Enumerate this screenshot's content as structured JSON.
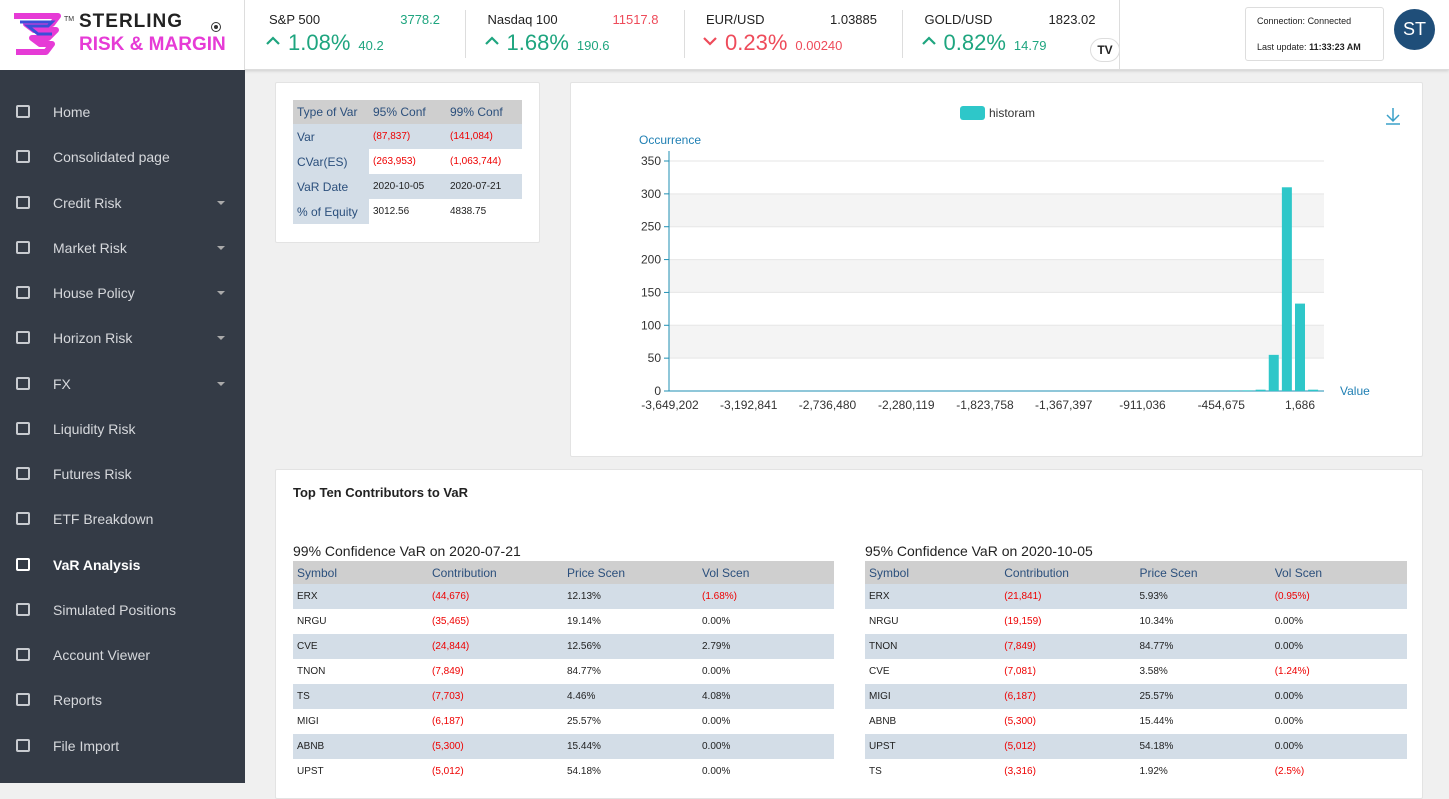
{
  "header": {
    "logo": {
      "line1": "STERLING",
      "line2": "RISK & MARGIN",
      "mark": "TM"
    },
    "tickers": [
      {
        "name": "S&P 500",
        "price": "3778.2",
        "change_pct": "1.08%",
        "change": "40.2"
      },
      {
        "name": "Nasdaq 100",
        "price": "11517.8",
        "change_pct": "1.68%",
        "change": "190.6"
      },
      {
        "name": "EUR/USD",
        "price": "1.03885",
        "change_pct": "0.23%",
        "change": "0.00240"
      },
      {
        "name": "GOLD/USD",
        "price": "1823.02",
        "change_pct": "0.82%",
        "change": "14.79"
      }
    ],
    "connection_label": "Connection:",
    "connection_value": "Connected",
    "update_label": "Last update:",
    "update_value": "11:33:23 AM",
    "avatar": "ST"
  },
  "sidebar": {
    "items": [
      "Home",
      "Consolidated page",
      "Credit Risk",
      "Market Risk",
      "House Policy",
      "Horizon Risk",
      "FX",
      "Liquidity Risk",
      "Futures Risk",
      "ETF Breakdown",
      "VaR Analysis",
      "Simulated Positions",
      "Account Viewer",
      "Reports",
      "File Import"
    ],
    "active": "VaR Analysis"
  },
  "summary_table": {
    "header": [
      "Type of Var",
      "95% Conf",
      "99% Conf"
    ],
    "rows": [
      [
        "Var",
        "(87,837)",
        "(141,084)"
      ],
      [
        "CVar(ES)",
        "(263,953)",
        "(1,063,744)"
      ],
      [
        "VaR Date",
        "2020-10-05",
        "2020-07-21"
      ],
      [
        "% of Equity",
        "3012.56",
        "4838.75"
      ]
    ]
  },
  "chart_data": {
    "type": "bar",
    "legend": "historam",
    "y_label": "Occurrence",
    "x_label": "Value",
    "color": "#2ec7c9",
    "grid": true,
    "categories": [
      "-3,649,202",
      null,
      null,
      null,
      null,
      null,
      "-3,192,841",
      null,
      null,
      null,
      null,
      null,
      "-2,736,480",
      null,
      null,
      null,
      null,
      null,
      "-2,280,119",
      null,
      null,
      null,
      null,
      null,
      "-1,823,758",
      null,
      null,
      null,
      null,
      null,
      "-1,367,397",
      null,
      null,
      null,
      null,
      null,
      "-911,036",
      null,
      null,
      null,
      null,
      null,
      "-454,675",
      null,
      null,
      null,
      null,
      null,
      "1,686",
      null
    ],
    "values": [
      0,
      0,
      0,
      0,
      0,
      0,
      0,
      0,
      0,
      0,
      0,
      0,
      0,
      0,
      0,
      0,
      0,
      0,
      0,
      0,
      0,
      0,
      0,
      0,
      0,
      0,
      0,
      0,
      0,
      0,
      0,
      0,
      0,
      0,
      0,
      0,
      0,
      0,
      0,
      0,
      0,
      0,
      0,
      1,
      1,
      2,
      55,
      310,
      133,
      2
    ],
    "ylim": [
      0,
      350
    ],
    "yticks": [
      0,
      50,
      100,
      150,
      200,
      250,
      300,
      350
    ]
  },
  "contributors": {
    "title": "Top Ten Contributors to VaR",
    "tables": [
      {
        "title": "99% Confidence VaR on 2020-07-21",
        "header": [
          "Symbol",
          "Contribution",
          "Price Scen",
          "Vol Scen"
        ],
        "rows": [
          [
            "ERX",
            "(44,676)",
            "12.13%",
            "(1.68%)"
          ],
          [
            "NRGU",
            "(35,465)",
            "19.14%",
            "0.00%"
          ],
          [
            "CVE",
            "(24,844)",
            "12.56%",
            "2.79%"
          ],
          [
            "TNON",
            "(7,849)",
            "84.77%",
            "0.00%"
          ],
          [
            "TS",
            "(7,703)",
            "4.46%",
            "4.08%"
          ],
          [
            "MIGI",
            "(6,187)",
            "25.57%",
            "0.00%"
          ],
          [
            "ABNB",
            "(5,300)",
            "15.44%",
            "0.00%"
          ],
          [
            "UPST",
            "(5,012)",
            "54.18%",
            "0.00%"
          ]
        ]
      },
      {
        "title": "95% Confidence VaR on 2020-10-05",
        "header": [
          "Symbol",
          "Contribution",
          "Price Scen",
          "Vol Scen"
        ],
        "rows": [
          [
            "ERX",
            "(21,841)",
            "5.93%",
            "(0.95%)"
          ],
          [
            "NRGU",
            "(19,159)",
            "10.34%",
            "0.00%"
          ],
          [
            "TNON",
            "(7,849)",
            "84.77%",
            "0.00%"
          ],
          [
            "CVE",
            "(7,081)",
            "3.58%",
            "(1.24%)"
          ],
          [
            "MIGI",
            "(6,187)",
            "25.57%",
            "0.00%"
          ],
          [
            "ABNB",
            "(5,300)",
            "15.44%",
            "0.00%"
          ],
          [
            "UPST",
            "(5,012)",
            "54.18%",
            "0.00%"
          ],
          [
            "TS",
            "(3,316)",
            "1.92%",
            "(2.5%)"
          ]
        ]
      }
    ]
  }
}
